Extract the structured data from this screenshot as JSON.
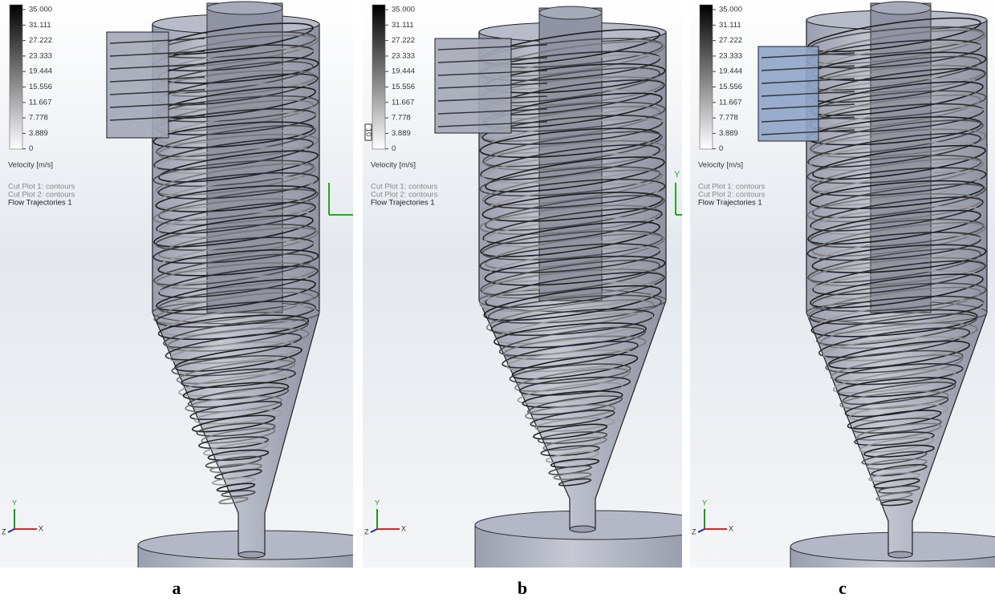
{
  "panels": [
    {
      "legend": {
        "ticks": [
          "35.000",
          "31.111",
          "27.222",
          "23.333",
          "19.444",
          "15.556",
          "11.667",
          "7.778",
          "3.889",
          "0"
        ],
        "title": "Velocity [m/s]"
      },
      "notes": [
        "Cut Plot 1: contours",
        "Cut Plot 2: contours",
        "Flow Trajectories 1"
      ],
      "triad": {
        "y": "Y",
        "x": "X",
        "z": "Z"
      },
      "caption": "a"
    },
    {
      "legend": {
        "ticks": [
          "35.000",
          "31.111",
          "27.222",
          "23.333",
          "19.444",
          "15.556",
          "11.667",
          "7.778",
          "3.889",
          "0"
        ],
        "title": "Velocity [m/s]",
        "slider": "10"
      },
      "notes": [
        "Cut Plot 1: contours",
        "Cut Plot 2: contours",
        "Flow Trajectories 1"
      ],
      "triad": {
        "y": "Y",
        "x": "X",
        "z": "Z"
      },
      "body_axis": "Y",
      "caption": "b"
    },
    {
      "legend": {
        "ticks": [
          "35.000",
          "31.111",
          "27.222",
          "23.333",
          "19.444",
          "15.556",
          "11.667",
          "7.778",
          "3.889",
          "0"
        ],
        "title": "Velocity [m/s]"
      },
      "notes": [
        "Cut Plot 1: contours",
        "Cut Plot 2: contours",
        "Flow Trajectories 1"
      ],
      "triad": {
        "y": "Y",
        "x": "X",
        "z": "Z"
      },
      "caption": "c"
    }
  ]
}
